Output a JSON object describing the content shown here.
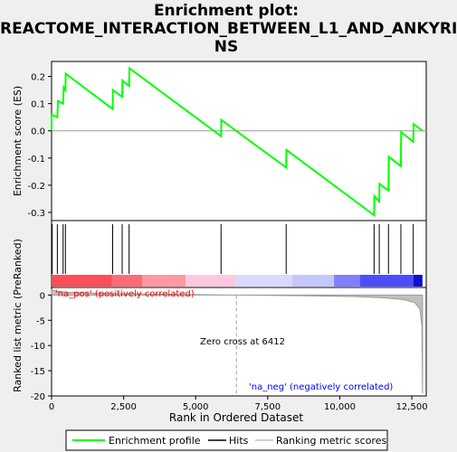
{
  "title_lines": [
    "Enrichment plot:",
    "REACTOME_INTERACTION_BETWEEN_L1_AND_ANKYRI",
    "NS"
  ],
  "chart_data": {
    "type": "line",
    "title": "Enrichment plot: REACTOME_INTERACTION_BETWEEN_L1_AND_ANKYRINS",
    "xlabel": "Rank in Ordered Dataset",
    "xlim": [
      0,
      13000
    ],
    "x_ticks": [
      0,
      2500,
      5000,
      7500,
      10000,
      12500
    ],
    "x_tick_labels": [
      "0",
      "2,500",
      "5,000",
      "7,500",
      "10,000",
      "12,500"
    ],
    "es_panel": {
      "ylabel": "Enrichment score (ES)",
      "ylim": [
        -0.33,
        0.255
      ],
      "y_ticks": [
        0.2,
        0.1,
        0.0,
        -0.1,
        -0.2,
        -0.3
      ],
      "y_tick_labels": [
        "0.2",
        "0.1",
        "0.0",
        "-0.1",
        "-0.2",
        "-0.3"
      ],
      "series_name": "Enrichment profile",
      "color": "#00ff00",
      "peaks": [
        [
          0,
          0.06
        ],
        [
          220,
          0.11
        ],
        [
          420,
          0.16
        ],
        [
          490,
          0.21
        ],
        [
          2130,
          0.15
        ],
        [
          2460,
          0.185
        ],
        [
          2700,
          0.23
        ],
        [
          5890,
          0.04
        ],
        [
          8150,
          -0.07
        ],
        [
          11200,
          -0.24
        ],
        [
          11380,
          -0.195
        ],
        [
          11700,
          -0.095
        ],
        [
          12130,
          -0.005
        ],
        [
          12560,
          0.025
        ],
        [
          12870,
          0.0
        ]
      ],
      "troughs_before": [
        [
          null,
          0.05
        ],
        [
          200,
          0.05
        ],
        [
          400,
          0.1
        ],
        [
          480,
          0.15
        ],
        [
          2120,
          0.08
        ],
        [
          2450,
          0.125
        ],
        [
          2690,
          0.165
        ],
        [
          5880,
          -0.02
        ],
        [
          8140,
          -0.135
        ],
        [
          11190,
          -0.31
        ],
        [
          11370,
          -0.26
        ],
        [
          11690,
          -0.22
        ],
        [
          12120,
          -0.13
        ],
        [
          12550,
          -0.04
        ],
        [
          null,
          null
        ]
      ]
    },
    "hits": [
      20,
      200,
      400,
      480,
      2120,
      2450,
      2690,
      5880,
      8140,
      11190,
      11370,
      11690,
      12120,
      12550
    ],
    "ranking_panel": {
      "ylabel": "Ranked list metric (PreRanked)",
      "ylim": [
        -20,
        1.5
      ],
      "y_ticks": [
        0,
        -5,
        -10,
        -15,
        -20
      ],
      "y_tick_labels": [
        "0",
        "-5",
        "-10",
        "-15",
        "-20"
      ],
      "zero_cross": 6412,
      "zero_cross_label": "Zero cross at 6412",
      "pos_label": "'na_pos' (positively correlated)",
      "neg_label": "'na_neg' (negatively correlated)",
      "pos_color": "#ff0000",
      "neg_color": "#0000ff",
      "heat_bands": [
        {
          "from": 0,
          "to": 2100,
          "color": "#ff4d5a"
        },
        {
          "from": 2100,
          "to": 3150,
          "color": "#ff6b76"
        },
        {
          "from": 3150,
          "to": 4650,
          "color": "#ff9aa2"
        },
        {
          "from": 4650,
          "to": 6400,
          "color": "#ffc8e0"
        },
        {
          "from": 6400,
          "to": 8350,
          "color": "#d9d9ff"
        },
        {
          "from": 8350,
          "to": 9800,
          "color": "#c6c6ff"
        },
        {
          "from": 9800,
          "to": 10700,
          "color": "#8080ff"
        },
        {
          "from": 10700,
          "to": 12550,
          "color": "#4d4dff"
        },
        {
          "from": 12550,
          "to": 12870,
          "color": "#1010d0"
        }
      ]
    },
    "legend": [
      {
        "label": "Enrichment profile",
        "color": "#00ff00"
      },
      {
        "label": "Hits",
        "color": "#000000"
      },
      {
        "label": "Ranking metric scores",
        "color": "#c0c0c0"
      }
    ]
  }
}
